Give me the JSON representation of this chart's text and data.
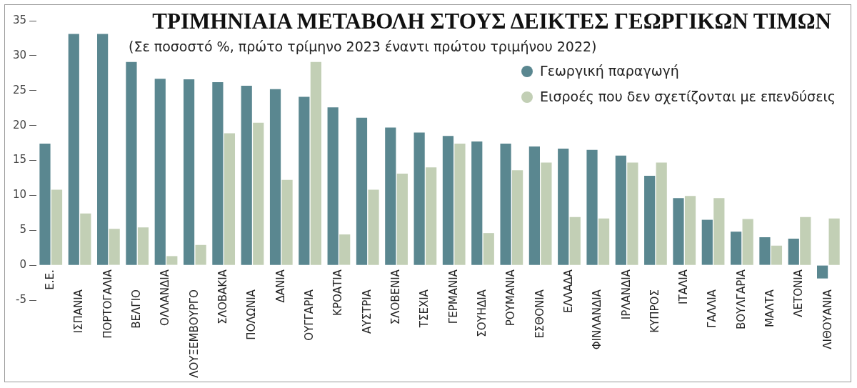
{
  "chart_data": {
    "type": "bar",
    "title": "ΤΡΙΜΗΝΙΑΙΑ ΜΕΤΑΒΟΛΗ ΣΤΟΥΣ ΔΕΙΚΤΕΣ ΓΕΩΡΓΙΚΩΝ ΤΙΜΩΝ",
    "subtitle": "(Σε ποσοστό %, πρώτο τρίμηνο 2023 έναντι πρώτου τριμήνου 2022)",
    "categories": [
      "Ε.Ε.",
      "ΙΣΠΑΝΙΑ",
      "ΠΟΡΤΟΓΑΛΙΑ",
      "ΒΕΛΓΙΟ",
      "ΟΛΛΑΝΔΙΑ",
      "ΛΟΥΞΕΜΒΟΥΡΓΟ",
      "ΣΛΟΒΑΚΙΑ",
      "ΠΟΛΩΝΙΑ",
      "ΔΑΝΙΑ",
      "ΟΥΓΓΑΡΙΑ",
      "ΚΡΟΑΤΙΑ",
      "ΑΥΣΤΡΙΑ",
      "ΣΛΟΒΕΝΙΑ",
      "ΤΣΕΧΙΑ",
      "ΓΕΡΜΑΝΙΑ",
      "ΣΟΥΗΔΙΑ",
      "ΡΟΥΜΑΝΙΑ",
      "ΕΣΘΟΝΙΑ",
      "ΕΛΛΑΔΑ",
      "ΦΙΝΛΑΝΔΙΑ",
      "ΙΡΛΑΝΔΙΑ",
      "ΚΥΠΡΟΣ",
      "ΙΤΑΛΙΑ",
      "ΓΑΛΛΙΑ",
      "ΒΟΥΛΓΑΡΙΑ",
      "ΜΑΛΤΑ",
      "ΛΕΤΟΝΙΑ",
      "ΛΙΘΟΥΑΝΙΑ"
    ],
    "series": [
      {
        "name": "Γεωργική παραγωγή",
        "color": "#5a8790",
        "values": [
          17.4,
          33.1,
          33.1,
          29.1,
          26.7,
          26.6,
          26.2,
          25.7,
          25.2,
          24.1,
          22.6,
          21.1,
          19.7,
          19.0,
          18.5,
          17.7,
          17.4,
          17.0,
          16.7,
          16.5,
          15.7,
          12.8,
          9.6,
          6.5,
          4.8,
          4.0,
          3.8,
          -1.9
        ]
      },
      {
        "name": "Εισροές που δεν σχετίζονται με επενδύσεις",
        "color": "#c2cfb5",
        "values": [
          10.8,
          7.4,
          5.2,
          5.4,
          1.3,
          2.9,
          18.9,
          20.4,
          12.2,
          29.1,
          4.4,
          10.8,
          13.1,
          14.0,
          17.4,
          4.6,
          13.6,
          14.7,
          6.9,
          6.7,
          14.7,
          14.7,
          9.9,
          9.6,
          6.6,
          2.8,
          6.9,
          6.7
        ]
      }
    ],
    "ylim": [
      -5,
      35
    ],
    "yticks": [
      -5,
      0,
      5,
      10,
      15,
      20,
      25,
      30,
      35
    ],
    "grid": false,
    "legend": "top right"
  }
}
